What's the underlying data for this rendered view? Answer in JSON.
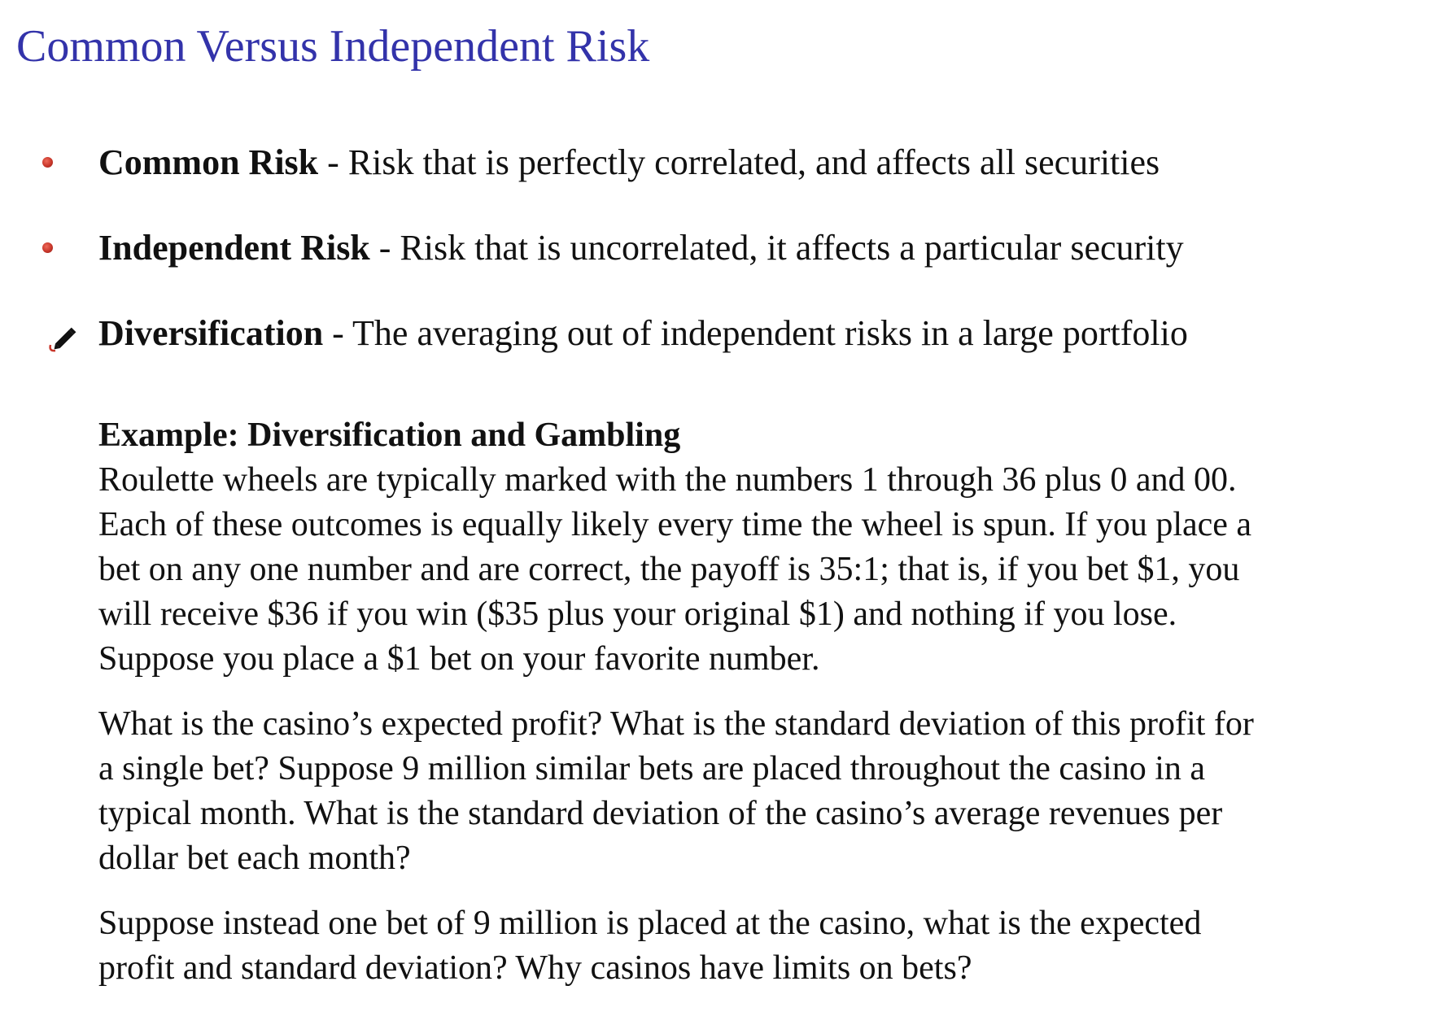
{
  "slide": {
    "title": "Common Versus Independent Risk",
    "bullets": [
      {
        "icon": "red-dot-bullet",
        "term": "Common Risk",
        "separator": " - ",
        "definition": "Risk that is perfectly correlated, and affects all securities"
      },
      {
        "icon": "red-dot-bullet",
        "term": "Independent Risk",
        "separator": " - ",
        "definition": "Risk that is uncorrelated, it affects a particular security"
      },
      {
        "icon": "pencil-icon",
        "term": "Diversification",
        "separator": " - ",
        "definition": "The averaging out of independent risks in a large portfolio"
      }
    ],
    "example": {
      "heading": "Example: Diversification and Gambling",
      "paragraph1": [
        "Roulette wheels are typically marked with the numbers 1 through 36 plus 0 and 00.",
        "Each of these outcomes is equally likely every time the wheel is spun. If you place a",
        "bet on any one number and are correct, the payoff is 35:1; that is, if you bet $1, you",
        "will receive $36 if you win ($35 plus your original $1) and nothing if you lose.",
        "Suppose you place a $1 bet on your favorite number."
      ],
      "paragraph2": [
        "What is the casino’s expected profit? What is the standard deviation of this profit for",
        "a single bet? Suppose 9 million similar bets are placed throughout the casino in a",
        "typical month. What is the standard deviation of the casino’s average revenues per",
        "dollar bet each month?"
      ],
      "paragraph3": [
        "Suppose instead one bet of 9 million is placed at the casino, what is the expected",
        "profit and standard deviation? Why casinos have limits on bets?"
      ]
    },
    "colors": {
      "title": "#3333aa",
      "bullet": "#c8362a",
      "text": "#111111"
    }
  }
}
